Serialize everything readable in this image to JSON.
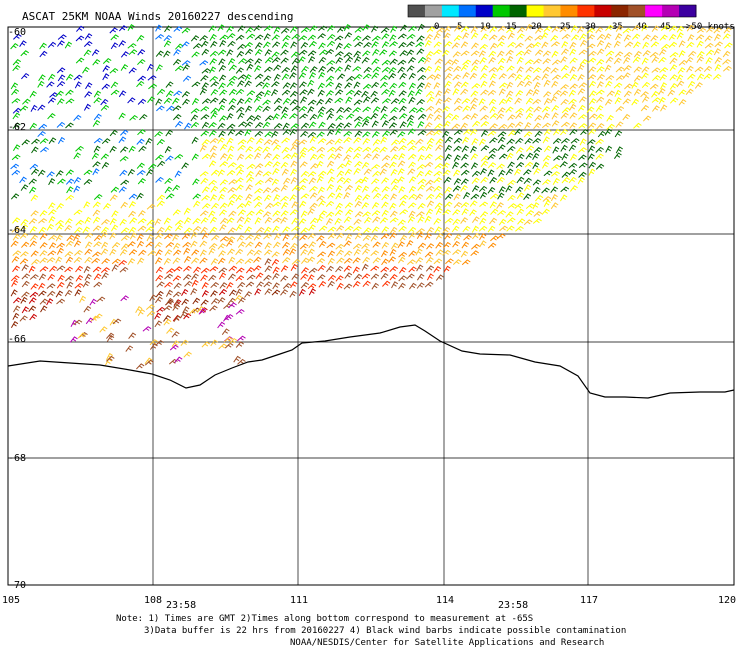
{
  "title": "ASCAT 25KM NOAA Winds 20160227 descending",
  "legend": {
    "labels": [
      "0",
      "5",
      "10",
      "15",
      "20",
      "25",
      "30",
      "35",
      "40",
      "45",
      ">50 knots"
    ],
    "colors": [
      "#505050",
      "#a0a0a0",
      "#00e8ff",
      "#0070ff",
      "#0000c8",
      "#00c800",
      "#006400",
      "#ffff00",
      "#ffc832",
      "#ff8c00",
      "#ff3200",
      "#c80000",
      "#8b2500",
      "#a05028",
      "#ff00ff",
      "#b400b4",
      "#3c00a0"
    ]
  },
  "axes": {
    "lon_labels": [
      "105",
      "108",
      "111",
      "114",
      "117",
      "120"
    ],
    "lat_labels": [
      "-60",
      "-62",
      "-64",
      "-66",
      "-68",
      "-70"
    ],
    "lon_range": [
      105,
      120
    ],
    "lat_range": [
      -60,
      -70
    ]
  },
  "times": [
    "23:58",
    "23:58"
  ],
  "notes": {
    "line1": "Note: 1) Times are GMT 2)Times along bottom correspond to measurement at -65S",
    "line2": "3)Data buffer is 22 hrs from 20160227 4) Black wind barbs indicate possible contamination",
    "line3": "NOAA/NESDIS/Center for Satellite Applications and Research"
  },
  "colors": {
    "time_label": "#800080",
    "coast": "#000000",
    "grid": "#000000"
  }
}
